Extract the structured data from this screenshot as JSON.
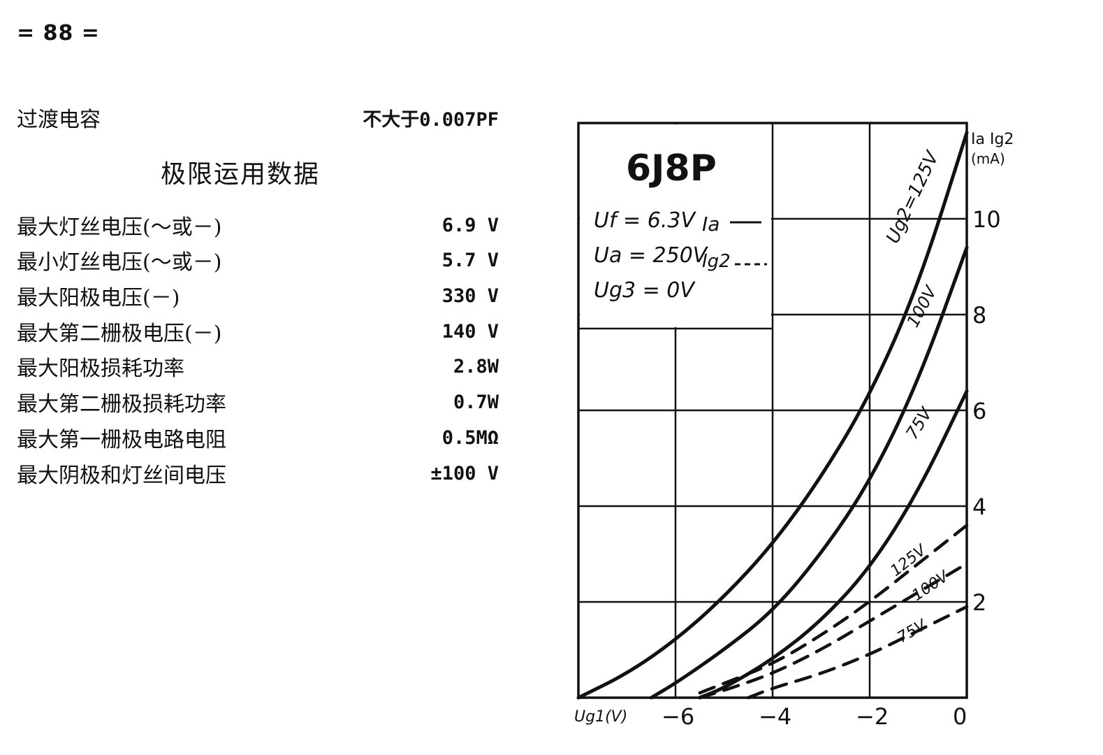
{
  "page_number": "= 88 =",
  "transition_capacitance": {
    "label": "过渡电容",
    "value": "不大于0.007PF"
  },
  "section_title": "极限运用数据",
  "limits": [
    {
      "label": "最大灯丝电压(～或－)",
      "value": "6.9 V"
    },
    {
      "label": "最小灯丝电压(～或－)",
      "value": "5.7 V"
    },
    {
      "label": "最大阳极电压(－)",
      "value": "330 V"
    },
    {
      "label": "最大第二栅极电压(－)",
      "value": "140 V"
    },
    {
      "label": "最大阳极损耗功率",
      "value": "2.8W"
    },
    {
      "label": "最大第二栅极损耗功率",
      "value": "0.7W"
    },
    {
      "label": "最大第一栅极电路电阻",
      "value": "0.5MΩ"
    },
    {
      "label": "最大阴极和灯丝间电压",
      "value": "±100 V"
    }
  ],
  "chart_data": {
    "type": "line",
    "title": "6J8P",
    "conditions": [
      "Uf = 6.3V",
      "Ua = 250V",
      "Ug3 = 0V"
    ],
    "legend": [
      {
        "label": "Ia",
        "style": "solid"
      },
      {
        "label": "Ig2",
        "style": "dashed"
      }
    ],
    "xlabel": "Ug1(V)",
    "ylabel": "Ia Ig2 (mA)",
    "xlim": [
      -8,
      0
    ],
    "ylim": [
      0,
      12
    ],
    "x_ticks": [
      -6,
      -4,
      -2,
      0
    ],
    "y_ticks": [
      2,
      4,
      6,
      8,
      10
    ],
    "grid": true,
    "series": [
      {
        "name": "Ug2=125V",
        "quantity": "Ia",
        "style": "solid",
        "x": [
          -8,
          -7,
          -6,
          -5,
          -4,
          -3,
          -2,
          -1,
          0
        ],
        "y": [
          0,
          0.5,
          1.2,
          2.1,
          3.2,
          4.6,
          6.3,
          8.6,
          11.8
        ]
      },
      {
        "name": "100V",
        "quantity": "Ia",
        "style": "solid",
        "x": [
          -6.5,
          -6,
          -5,
          -4,
          -3,
          -2,
          -1,
          0
        ],
        "y": [
          0,
          0.3,
          1.0,
          1.8,
          3.0,
          4.5,
          6.6,
          9.4
        ]
      },
      {
        "name": "75V",
        "quantity": "Ia",
        "style": "solid",
        "x": [
          -5.5,
          -5,
          -4,
          -3,
          -2,
          -1,
          0
        ],
        "y": [
          0,
          0.2,
          0.8,
          1.6,
          2.7,
          4.3,
          6.4
        ]
      },
      {
        "name": "125V",
        "quantity": "Ig2",
        "style": "dashed",
        "x": [
          -5.5,
          -5,
          -4,
          -3,
          -2,
          -1,
          0
        ],
        "y": [
          0.1,
          0.3,
          0.7,
          1.3,
          2.0,
          2.8,
          3.6
        ]
      },
      {
        "name": "100V",
        "quantity": "Ig2",
        "style": "dashed",
        "x": [
          -5.5,
          -5,
          -4,
          -3,
          -2,
          -1,
          0
        ],
        "y": [
          0,
          0.15,
          0.5,
          1.0,
          1.6,
          2.2,
          2.8
        ]
      },
      {
        "name": "75V",
        "quantity": "Ig2",
        "style": "dashed",
        "x": [
          -4.5,
          -4,
          -3,
          -2,
          -1,
          0
        ],
        "y": [
          0,
          0.2,
          0.5,
          0.9,
          1.4,
          1.9
        ]
      }
    ]
  }
}
